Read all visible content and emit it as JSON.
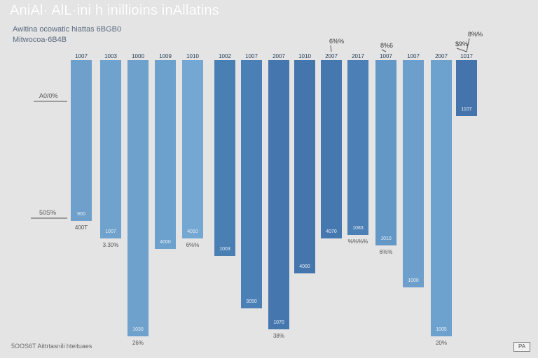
{
  "header": {
    "title": "AniAl· AlL·ini h inillioins inAllatins",
    "subtitle_1": "Awitina ocowatic hiattas 6​BGB0",
    "subtitle_2": "Mitwocoa·6B4B"
  },
  "footer": {
    "source": "5OOS6T Aittrtasnili hteituaes",
    "logo_text": "PA"
  },
  "chart_data": {
    "type": "bar",
    "title": "AniAl· AlL·ini h inillioins inAllatins",
    "xlabel": "",
    "ylabel": "",
    "ylim": [
      0,
      400
    ],
    "axis_labels": [
      "A0/0%",
      "50S%"
    ],
    "axis_values": [
      350,
      150
    ],
    "categories": [
      "1007",
      "1003",
      "1000",
      "1009",
      "1010",
      "1002",
      "1007",
      "2007",
      "1010",
      "2007",
      "2017",
      "1007",
      "1007",
      "2007",
      "1017"
    ],
    "values": [
      230,
      255,
      395,
      270,
      255,
      280,
      355,
      385,
      305,
      255,
      250,
      265,
      325,
      395,
      80
    ],
    "colors": [
      "#6ea0cb",
      "#6fa2cc",
      "#6ea2cd",
      "#6ba1cc",
      "#74a8d2",
      "#4a7fb4",
      "#4a80b6",
      "#4577ae",
      "#4476ad",
      "#4678b0",
      "#4b7fb5",
      "#6397c6",
      "#6c9fcb",
      "#6ea2ce",
      "#4574ac"
    ],
    "inner_labels": [
      "900",
      "1007",
      "1030",
      "4000",
      "4010",
      "1003",
      "3050",
      "1070",
      "4000",
      "4070",
      "1083",
      "1010",
      "1000",
      "1005",
      "1107"
    ],
    "below_labels": [
      "400T",
      "3.30%",
      "26%",
      "",
      "6%%",
      "",
      "",
      "38%",
      "",
      "",
      "%%%%",
      "6%%",
      "",
      "20%",
      ""
    ],
    "callouts": [
      {
        "text": "6%%",
        "bar": 9
      },
      {
        "text": "8%6",
        "bar": 11
      },
      {
        "text": "8%%",
        "bar": 14
      },
      {
        "text": "$9%",
        "bar": 14
      }
    ]
  }
}
